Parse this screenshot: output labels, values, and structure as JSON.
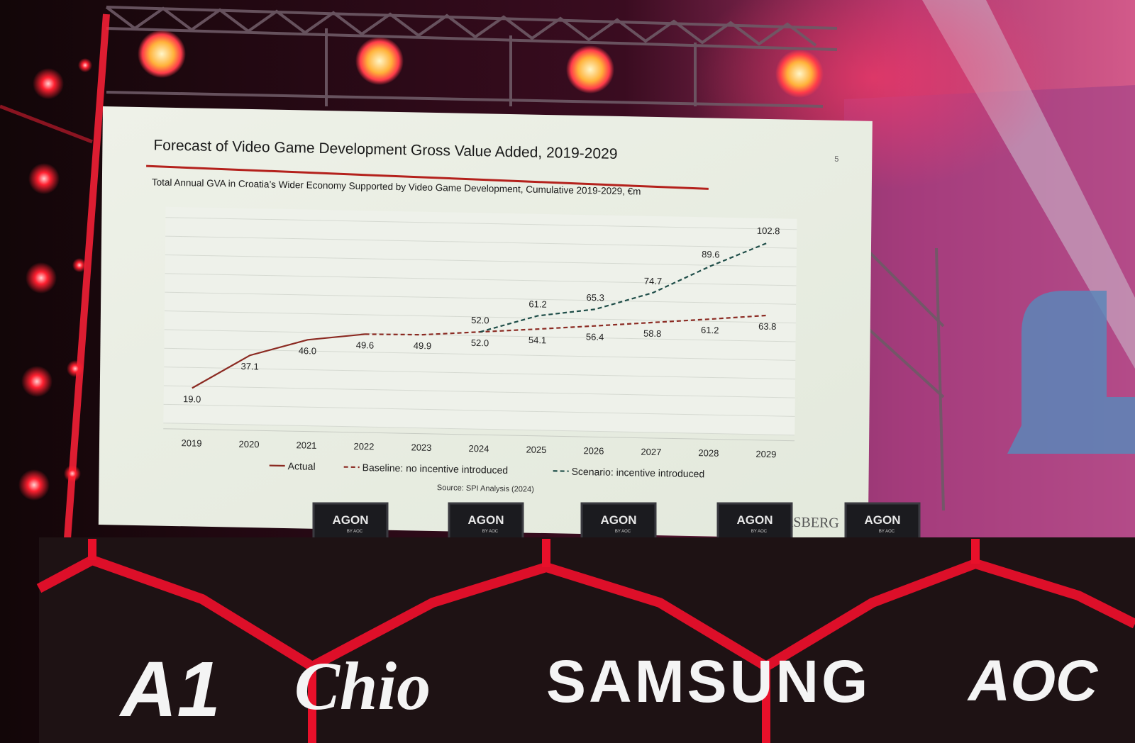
{
  "slide": {
    "title": "Forecast of Video Game Development Gross Value Added, 2019-2029",
    "page_number": "5",
    "subtitle": "Total Annual GVA in Croatia’s Wider Economy Supported by Video Game Development, Cumulative 2019-2029, €m",
    "source": "Source: SPI Analysis (2024)",
    "partial_logo_text": "ASBERG",
    "title_rule_color": "#b4211c"
  },
  "chart_data": {
    "type": "line",
    "title": "Forecast of Video Game Development Gross Value Added, 2019-2029",
    "subtitle": "Total Annual GVA in Croatia’s Wider Economy Supported by Video Game Development, Cumulative 2019-2029, €m",
    "x": [
      "2019",
      "2020",
      "2021",
      "2022",
      "2023",
      "2024",
      "2025",
      "2026",
      "2027",
      "2028",
      "2029"
    ],
    "series": [
      {
        "name": "Actual",
        "color": "#8b2a22",
        "style": "solid",
        "values": [
          19.0,
          37.1,
          46.0,
          49.6,
          null,
          null,
          null,
          null,
          null,
          null,
          null
        ],
        "labels": [
          "19.0",
          "37.1",
          "46.0",
          "49.6",
          "",
          "",
          "",
          "",
          "",
          "",
          ""
        ]
      },
      {
        "name": "Baseline: no incentive introduced",
        "color": "#8b2a22",
        "style": "dashed",
        "values": [
          null,
          null,
          null,
          49.6,
          49.9,
          52.0,
          54.1,
          56.4,
          58.8,
          61.2,
          63.8
        ],
        "labels": [
          "",
          "",
          "",
          "",
          "49.9",
          "52.0",
          "54.1",
          "56.4",
          "58.8",
          "61.2",
          "63.8"
        ]
      },
      {
        "name": "Scenario: incentive introduced",
        "color": "#1e4d48",
        "style": "dashed",
        "values": [
          null,
          null,
          null,
          null,
          null,
          52.0,
          61.2,
          65.3,
          74.7,
          89.6,
          102.8
        ],
        "labels": [
          "",
          "",
          "",
          "",
          "",
          "52.0",
          "61.2",
          "65.3",
          "74.7",
          "89.6",
          "102.8"
        ]
      }
    ],
    "ylim": [
      0,
      110
    ],
    "grid": true,
    "legend_position": "bottom"
  },
  "monitors": [
    {
      "brand": "AGON",
      "sub": "BY AOC"
    },
    {
      "brand": "AGON",
      "sub": "BY AOC"
    },
    {
      "brand": "AGON",
      "sub": "BY AOC"
    },
    {
      "brand": "AGON",
      "sub": "BY AOC"
    },
    {
      "brand": "AGON",
      "sub": "BY AOC"
    }
  ],
  "sponsors": [
    "A1",
    "Chio",
    "SAMSUNG",
    "AOC"
  ],
  "colors": {
    "stage_red": "#e8102a",
    "screen_bg": "#e9ede3",
    "desk_dark": "#1e1214"
  }
}
